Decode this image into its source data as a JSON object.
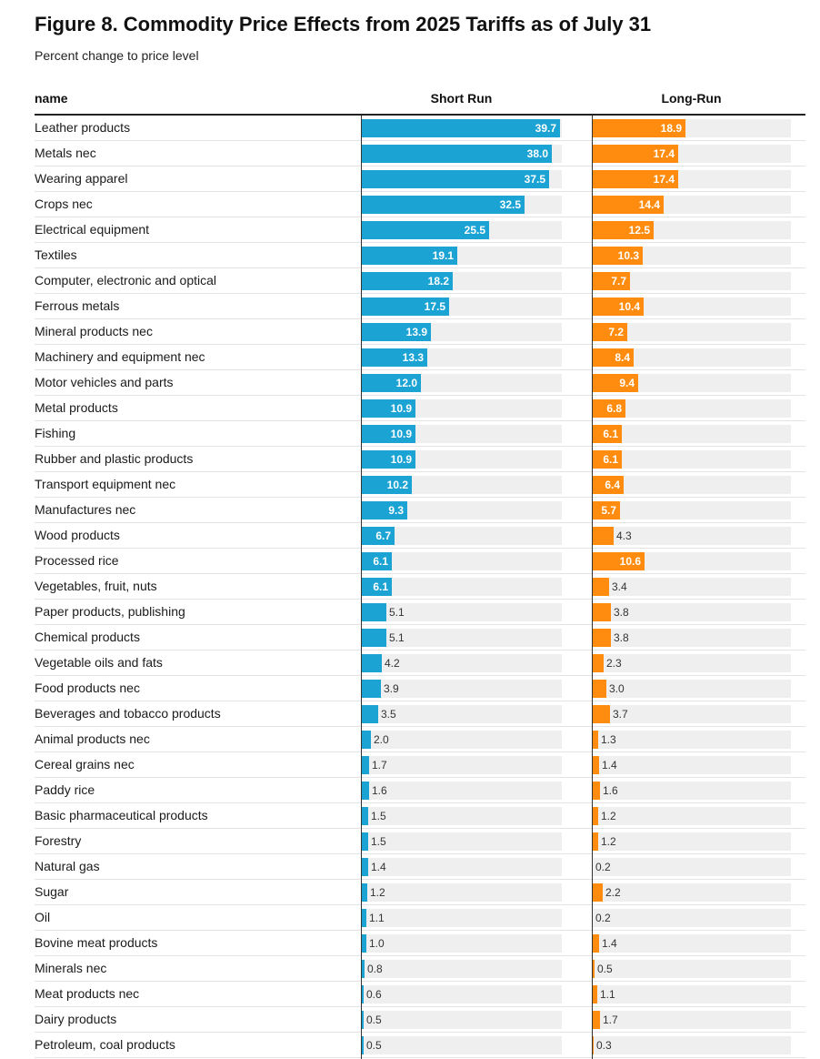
{
  "title": "Figure 8. Commodity Price Effects from 2025 Tariffs as of July 31",
  "subtitle": "Percent change to price level",
  "headers": {
    "name": "name",
    "short_run": "Short Run",
    "long_run": "Long-Run"
  },
  "colors": {
    "short_run": "#1ba3d4",
    "long_run": "#ff8c0e",
    "track": "#efefef"
  },
  "chart_data": {
    "type": "bar",
    "orientation": "horizontal",
    "title": "Figure 8. Commodity Price Effects from 2025 Tariffs as of July 31",
    "subtitle": "Percent change to price level",
    "categories": [
      "Leather products",
      "Metals nec",
      "Wearing apparel",
      "Crops nec",
      "Electrical equipment",
      "Textiles",
      "Computer, electronic and optical",
      "Ferrous metals",
      "Mineral products nec",
      "Machinery and equipment nec",
      "Motor vehicles and parts",
      "Metal products",
      "Fishing",
      "Rubber and plastic products",
      "Transport equipment nec",
      "Manufactures nec",
      "Wood products",
      "Processed rice",
      "Vegetables, fruit, nuts",
      "Paper products, publishing",
      "Chemical products",
      "Vegetable oils and fats",
      "Food products nec",
      "Beverages and tobacco products",
      "Animal products nec",
      "Cereal grains nec",
      "Paddy rice",
      "Basic pharmaceutical products",
      "Forestry",
      "Natural gas",
      "Sugar",
      "Oil",
      "Bovine meat products",
      "Minerals nec",
      "Meat products nec",
      "Dairy products",
      "Petroleum, coal products"
    ],
    "series": [
      {
        "name": "Short Run",
        "xlim": [
          0,
          40
        ],
        "values": [
          39.7,
          38.0,
          37.5,
          32.5,
          25.5,
          19.1,
          18.2,
          17.5,
          13.9,
          13.3,
          12.0,
          10.9,
          10.9,
          10.9,
          10.2,
          9.3,
          6.7,
          6.1,
          6.1,
          5.1,
          5.1,
          4.2,
          3.9,
          3.5,
          2.0,
          1.7,
          1.6,
          1.5,
          1.5,
          1.4,
          1.2,
          1.1,
          1.0,
          0.8,
          0.6,
          0.5,
          0.5
        ]
      },
      {
        "name": "Long-Run",
        "xlim": [
          0,
          40
        ],
        "values": [
          18.9,
          17.4,
          17.4,
          14.4,
          12.5,
          10.3,
          7.7,
          10.4,
          7.2,
          8.4,
          9.4,
          6.8,
          6.1,
          6.1,
          6.4,
          5.7,
          4.3,
          10.6,
          3.4,
          3.8,
          3.8,
          2.3,
          3.0,
          3.7,
          1.3,
          1.4,
          1.6,
          1.2,
          1.2,
          0.2,
          2.2,
          0.2,
          1.4,
          0.5,
          1.1,
          1.7,
          0.3
        ]
      }
    ]
  }
}
